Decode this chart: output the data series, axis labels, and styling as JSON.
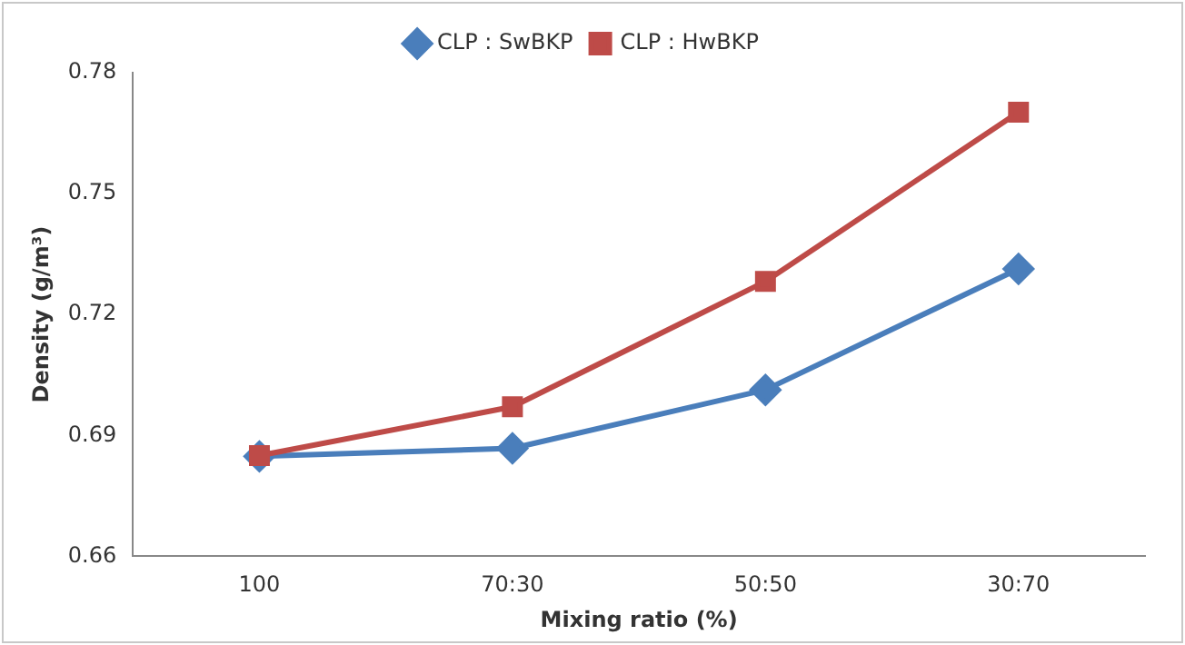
{
  "chart_data": {
    "type": "line",
    "xlabel": "Mixing ratio (%)",
    "ylabel": "Density (g/m³)",
    "categories": [
      "100",
      "70:30",
      "50:50",
      "30:70"
    ],
    "series": [
      {
        "name": "CLP : SwBKP",
        "color": "#4a7ebb",
        "marker": "diamond",
        "values": [
          0.6848,
          0.6868,
          0.7013,
          0.7313
        ]
      },
      {
        "name": "CLP : HwBKP",
        "color": "#be4b48",
        "marker": "square",
        "values": [
          0.685,
          0.6971,
          0.7282,
          0.7702
        ]
      }
    ],
    "ylim": [
      0.66,
      0.78
    ],
    "yticks": [
      0.66,
      0.69,
      0.72,
      0.75,
      0.78
    ],
    "grid": false,
    "legend": "top",
    "line_style": "solid"
  }
}
